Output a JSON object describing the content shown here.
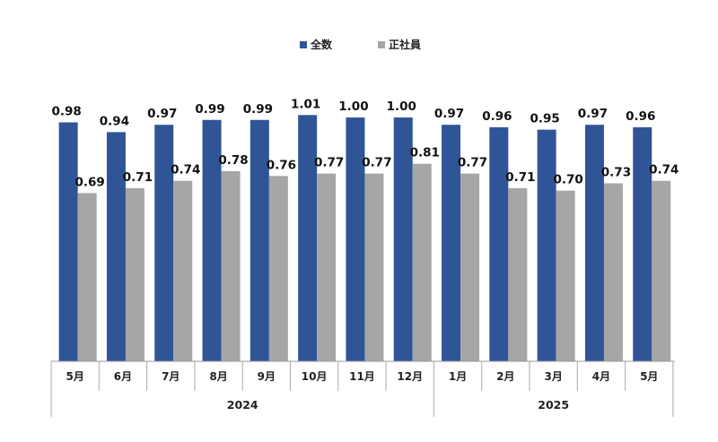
{
  "chart_data": {
    "type": "bar",
    "title": "",
    "xlabel": "",
    "ylabel": "",
    "ylim": [
      0,
      1.07
    ],
    "grid": false,
    "legend_position": "top-center",
    "categories": [
      "5月",
      "6月",
      "7月",
      "8月",
      "9月",
      "10月",
      "11月",
      "12月",
      "1月",
      "2月",
      "3月",
      "4月",
      "5月"
    ],
    "groups": [
      {
        "label": "2024",
        "span": [
          0,
          7
        ]
      },
      {
        "label": "2025",
        "span": [
          8,
          12
        ]
      }
    ],
    "series": [
      {
        "name": "全数",
        "color": "#2f5597",
        "values": [
          0.98,
          0.94,
          0.97,
          0.99,
          0.99,
          1.01,
          1.0,
          1.0,
          0.97,
          0.96,
          0.95,
          0.97,
          0.96
        ],
        "labels": [
          "0.98",
          "0.94",
          "0.97",
          "0.99",
          "0.99",
          "1.01",
          "1.00",
          "1.00",
          "0.97",
          "0.96",
          "0.95",
          "0.97",
          "0.96"
        ]
      },
      {
        "name": "正社員",
        "color": "#a6a6a6",
        "values": [
          0.69,
          0.71,
          0.74,
          0.78,
          0.76,
          0.77,
          0.77,
          0.81,
          0.77,
          0.71,
          0.7,
          0.73,
          0.74
        ],
        "labels": [
          "0.69",
          "0.71",
          "0.74",
          "0.78",
          "0.76",
          "0.77",
          "0.77",
          "0.81",
          "0.77",
          "0.71",
          "0.70",
          "0.73",
          "0.74"
        ]
      }
    ]
  }
}
